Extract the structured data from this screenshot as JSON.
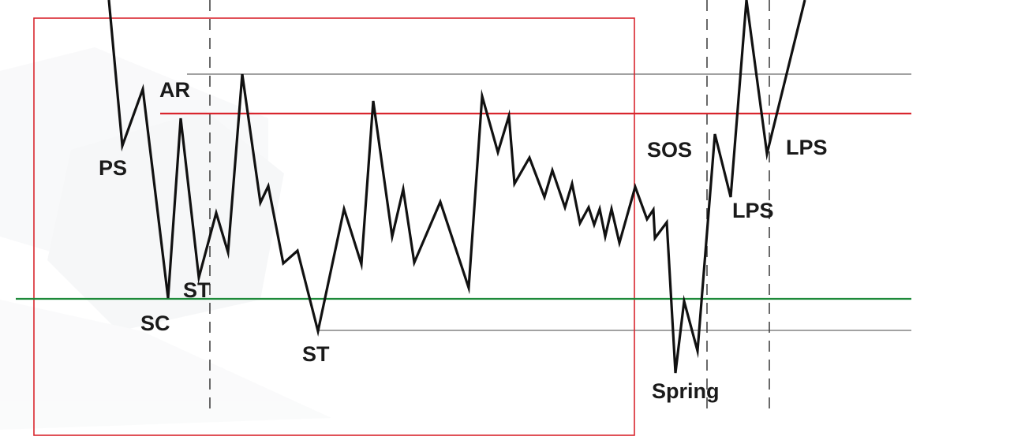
{
  "labels": {
    "ps": "PS",
    "ar": "AR",
    "sc": "SC",
    "st1": "ST",
    "st2": "ST",
    "sos": "SOS",
    "lps1": "LPS",
    "lps2": "LPS",
    "spring": "Spring"
  },
  "colors": {
    "price": "#111111",
    "range_box": "#d9262e",
    "resistance": "#d9262e",
    "support": "#1e8a3a",
    "guide": "#444444"
  }
}
